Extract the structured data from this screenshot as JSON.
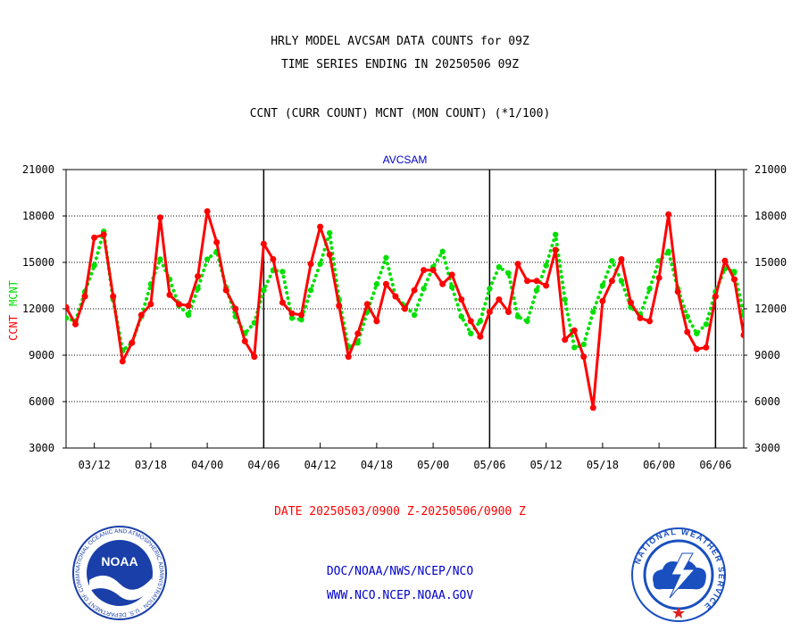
{
  "header": {
    "title_line1": "HRLY MODEL AVCSAM DATA COUNTS for 09Z",
    "title_line2": "TIME SERIES ENDING IN 20250506 09Z",
    "subtitle": "CCNT (CURR COUNT) MCNT (MON COUNT) (*1/100)"
  },
  "footer": {
    "date_range": "DATE 20250503/0900 Z-20250506/0900 Z",
    "org_path": "DOC/NOAA/NWS/NCEP/NCO",
    "website": "WWW.NCO.NCEP.NOAA.GOV"
  },
  "logos": {
    "noaa": {
      "name": "noaa-logo",
      "text": "NOAA",
      "ring_text": "NATIONAL OCEANIC AND ATMOSPHERIC ADMINISTRATION · U.S. DEPARTMENT OF COMMERCE"
    },
    "nws": {
      "name": "nws-logo",
      "ring_text": "NATIONAL WEATHER SERVICE"
    }
  },
  "colors": {
    "ccnt": "#ff0000",
    "mcnt": "#00e000",
    "plot_title": "#0000cc",
    "footer_date": "#ff0000",
    "footer_links": "#0000cc",
    "noaa_blue": "#1a3fa8",
    "nws_blue": "#1a4fc0"
  },
  "chart_data": {
    "type": "line",
    "title": "AVCSAM",
    "ylabel_ccnt": "CCNT",
    "ylabel_mcnt": "MCNT",
    "ylim": [
      3000,
      21000
    ],
    "yticks": [
      3000,
      6000,
      9000,
      12000,
      15000,
      18000,
      21000
    ],
    "ytick_labels": [
      "3000",
      "6000",
      "9000",
      "12000",
      "15000",
      "18000",
      "21000"
    ],
    "xlim": [
      0,
      72
    ],
    "xticks": [
      {
        "x": 3,
        "label": "03/12"
      },
      {
        "x": 9,
        "label": "03/18"
      },
      {
        "x": 15,
        "label": "04/00"
      },
      {
        "x": 21,
        "label": "04/06"
      },
      {
        "x": 27,
        "label": "04/12"
      },
      {
        "x": 33,
        "label": "04/18"
      },
      {
        "x": 39,
        "label": "05/00"
      },
      {
        "x": 45,
        "label": "05/06"
      },
      {
        "x": 51,
        "label": "05/12"
      },
      {
        "x": 57,
        "label": "05/18"
      },
      {
        "x": 63,
        "label": "06/00"
      },
      {
        "x": 69,
        "label": "06/06"
      }
    ],
    "day_dividers": [
      21,
      45,
      69
    ],
    "grid": true,
    "series": [
      {
        "name": "CCNT",
        "style": "solid",
        "values": [
          12100,
          11000,
          12800,
          16600,
          16800,
          12800,
          8600,
          9800,
          11600,
          12300,
          17900,
          12900,
          12300,
          12200,
          14100,
          18300,
          16300,
          13200,
          12000,
          9900,
          8900,
          16200,
          15200,
          12400,
          11700,
          11600,
          14900,
          17300,
          15500,
          12200,
          8900,
          10400,
          12300,
          11200,
          13600,
          12800,
          12000,
          13200,
          14500,
          14500,
          13600,
          14200,
          12600,
          11200,
          10200,
          11800,
          12600,
          11800,
          14900,
          13800,
          13800,
          13500,
          15800,
          10000,
          10600,
          8900,
          5600,
          12500,
          13800,
          15200,
          12400,
          11400,
          11200,
          14000,
          18100,
          13100,
          10500,
          9400,
          9500,
          12800,
          15100,
          13900,
          10300
        ]
      },
      {
        "name": "MCNT",
        "style": "dotted",
        "values": [
          11400,
          11200,
          13100,
          14800,
          17000,
          12600,
          9300,
          9800,
          11500,
          13600,
          15200,
          13900,
          12200,
          11600,
          13300,
          15200,
          15700,
          13400,
          11500,
          10400,
          11100,
          13200,
          14500,
          14400,
          11400,
          11300,
          13200,
          14900,
          16900,
          12600,
          9500,
          9800,
          11800,
          13600,
          15300,
          12800,
          12200,
          11600,
          13300,
          14700,
          15700,
          13400,
          11500,
          10400,
          11200,
          13300,
          14700,
          14300,
          11500,
          11200,
          13200,
          14800,
          16800,
          12600,
          9500,
          9700,
          11800,
          13500,
          15100,
          13800,
          12100,
          11600,
          13300,
          15100,
          15700,
          13300,
          11500,
          10400,
          11000,
          13100,
          14600,
          14400,
          11600
        ]
      }
    ]
  }
}
